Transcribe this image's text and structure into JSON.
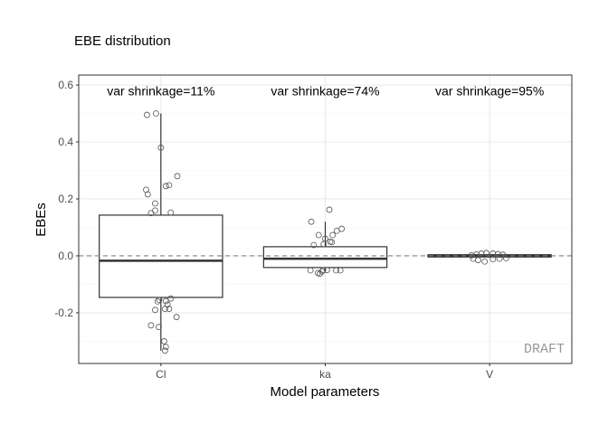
{
  "chart_data": {
    "type": "boxplot",
    "title": "EBE distribution",
    "xlabel": "Model parameters",
    "ylabel": "EBEs",
    "categories": [
      "Cl",
      "ka",
      "V"
    ],
    "ylim": [
      -0.378,
      0.635
    ],
    "yticks": [
      -0.2,
      0.0,
      0.2,
      0.4,
      0.6
    ],
    "ytick_labels": [
      "-0.2",
      "0.0",
      "0.2",
      "0.4",
      "0.6"
    ],
    "grid": true,
    "reference_line": {
      "y": 0,
      "style": "dashed"
    },
    "watermark": "DRAFT",
    "annotations": [
      "var shrinkage=11%",
      "var shrinkage=74%",
      "var shrinkage=95%"
    ],
    "annotation_y": 0.58,
    "colors": {
      "box": "#333333",
      "points": "#555555",
      "grid": "#ebebeb",
      "refline": "#808080",
      "panel_border": "#333333",
      "watermark": "#999999"
    },
    "boxes": [
      {
        "category": "Cl",
        "q1": -0.146,
        "median": -0.017,
        "q3": 0.143,
        "whisker_low": -0.333,
        "whisker_high": 0.5
      },
      {
        "category": "ka",
        "q1": -0.041,
        "median": -0.01,
        "q3": 0.032,
        "whisker_low": -0.055,
        "whisker_high": 0.12
      },
      {
        "category": "V",
        "q1": -0.004,
        "median": 0.0,
        "q3": 0.004,
        "whisker_low": -0.006,
        "whisker_high": 0.006
      }
    ],
    "points": {
      "Cl": [
        [
          0.495,
          -0.085
        ],
        [
          0.5,
          -0.03
        ],
        [
          0.38,
          0
        ],
        [
          0.28,
          0.1
        ],
        [
          0.245,
          0.03
        ],
        [
          0.248,
          0.05
        ],
        [
          0.232,
          -0.09
        ],
        [
          0.216,
          -0.08
        ],
        [
          0.184,
          -0.035
        ],
        [
          0.159,
          -0.035
        ],
        [
          0.15,
          -0.06
        ],
        [
          0.152,
          0.06
        ],
        [
          -0.155,
          -0.01
        ],
        [
          -0.159,
          0.03
        ],
        [
          -0.171,
          0.04
        ],
        [
          -0.186,
          0.025
        ],
        [
          -0.186,
          0.05
        ],
        [
          -0.19,
          -0.035
        ],
        [
          -0.215,
          0.095
        ],
        [
          -0.244,
          -0.06
        ],
        [
          -0.25,
          -0.013
        ],
        [
          -0.3,
          0.02
        ],
        [
          -0.32,
          0.03
        ],
        [
          -0.333,
          0.025
        ],
        [
          -0.15,
          0.06
        ],
        [
          -0.16,
          -0.02
        ]
      ],
      "ka": [
        [
          0.162,
          0.025
        ],
        [
          0.12,
          -0.085
        ],
        [
          0.095,
          0.1
        ],
        [
          0.088,
          0.07
        ],
        [
          0.073,
          -0.04
        ],
        [
          0.073,
          0.045
        ],
        [
          0.06,
          0
        ],
        [
          0.048,
          0.04
        ],
        [
          0.041,
          -0.01
        ],
        [
          0.038,
          -0.07
        ],
        [
          -0.051,
          -0.09
        ],
        [
          -0.06,
          -0.045
        ],
        [
          -0.063,
          -0.033
        ],
        [
          -0.05,
          -0.013
        ],
        [
          -0.05,
          0.01
        ],
        [
          -0.051,
          0.066
        ],
        [
          -0.051,
          0.092
        ],
        [
          -0.055,
          -0.02
        ],
        [
          0.05,
          0.03
        ]
      ],
      "V": [
        [
          0.005,
          -0.08
        ],
        [
          0.008,
          -0.05
        ],
        [
          0.01,
          -0.02
        ],
        [
          0.008,
          0.02
        ],
        [
          0.006,
          0.05
        ],
        [
          -0.01,
          -0.1
        ],
        [
          -0.015,
          -0.07
        ],
        [
          -0.02,
          -0.03
        ],
        [
          -0.012,
          0.02
        ],
        [
          -0.01,
          0.06
        ],
        [
          0.004,
          0.08
        ],
        [
          -0.008,
          0.1
        ],
        [
          0.002,
          -0.11
        ]
      ]
    }
  }
}
